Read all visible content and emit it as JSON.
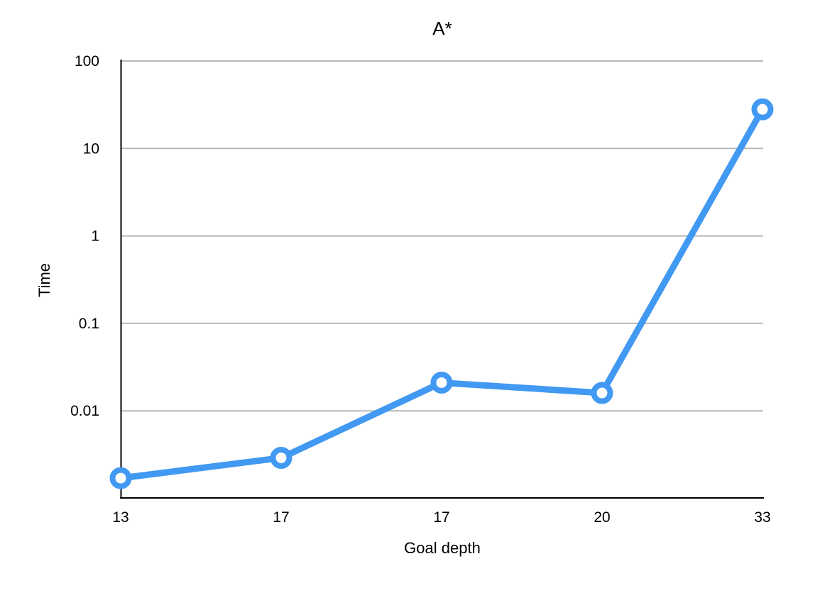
{
  "chart_data": {
    "type": "line",
    "title": "A*",
    "xlabel": "Goal depth",
    "ylabel": "Time",
    "y_scale": "log",
    "ylim": [
      0.00066,
      100
    ],
    "y_ticks": [
      {
        "value": 100,
        "label": "100"
      },
      {
        "value": 10,
        "label": "10"
      },
      {
        "value": 1,
        "label": "1"
      },
      {
        "value": 0.1,
        "label": "0.1"
      },
      {
        "value": 0.01,
        "label": "0.01"
      }
    ],
    "categories": [
      "13",
      "17",
      "17",
      "20",
      "33"
    ],
    "series": [
      {
        "values": [
          0.0017,
          0.0029,
          0.021,
          0.016,
          28
        ]
      }
    ],
    "grid": true,
    "legend": "none",
    "colors": {
      "line": "#4199f2",
      "marker_fill": "#ffffff",
      "grid": "#b8b8b8",
      "axis": "#000000"
    }
  }
}
